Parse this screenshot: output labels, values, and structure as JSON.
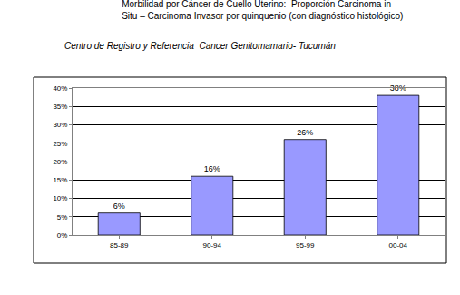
{
  "chart_data": {
    "type": "bar",
    "title": "Morbilidad por Cáncer de Cuello Uterino:  Proporción Carcinoma in\nSitu – Carcinoma Invasor por quinquenio (con diagnóstico histológico)",
    "subtitle": "Centro de Registro y Referencia  Cancer Genitomamario- Tucumán",
    "categories": [
      "85-89",
      "90-94",
      "95-99",
      "00-04"
    ],
    "values": [
      6,
      16,
      26,
      38
    ],
    "value_labels": [
      "6%",
      "16%",
      "26%",
      "38%"
    ],
    "data_labels": true,
    "color": "#9999ff",
    "ylim": [
      0,
      40
    ],
    "yticks": [
      {
        "value": 0,
        "label": "0%"
      },
      {
        "value": 5,
        "label": "5%"
      },
      {
        "value": 10,
        "label": "10%"
      },
      {
        "value": 15,
        "label": "15%"
      },
      {
        "value": 20,
        "label": "20%"
      },
      {
        "value": 25,
        "label": "25%"
      },
      {
        "value": 30,
        "label": "30%"
      },
      {
        "value": 35,
        "label": "35%"
      },
      {
        "value": 40,
        "label": "40%"
      }
    ],
    "grid": true
  }
}
